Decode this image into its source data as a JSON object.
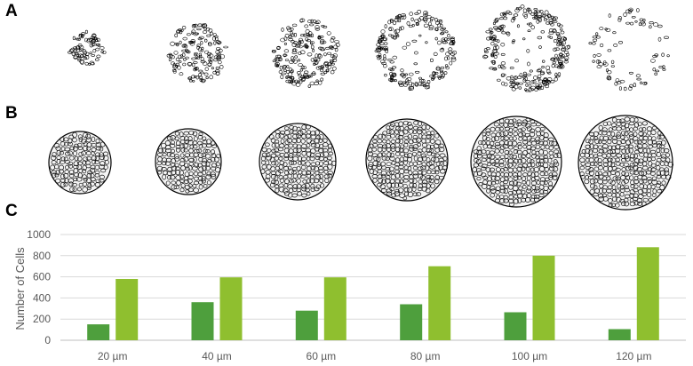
{
  "figure": {
    "panels": [
      {
        "id": "A",
        "label": "A"
      },
      {
        "id": "B",
        "label": "B"
      },
      {
        "id": "C",
        "label": "C"
      }
    ]
  },
  "row_a": {
    "description_color": "#000000",
    "disks": [
      {
        "fill_level": 0.18,
        "style": "sparse"
      },
      {
        "fill_level": 0.35,
        "style": "sparse"
      },
      {
        "fill_level": 0.45,
        "style": "sparse"
      },
      {
        "fill_level": 0.45,
        "style": "ring"
      },
      {
        "fill_level": 0.45,
        "style": "ring"
      },
      {
        "fill_level": 0.25,
        "style": "ring"
      }
    ]
  },
  "row_b": {
    "disks": [
      {
        "style": "dense"
      },
      {
        "style": "dense"
      },
      {
        "style": "dense"
      },
      {
        "style": "dense"
      },
      {
        "style": "dense"
      },
      {
        "style": "dense"
      }
    ]
  },
  "chart_data": {
    "type": "bar",
    "title": "",
    "xlabel": "",
    "ylabel": "Number of Cells",
    "ylim": [
      0,
      1000
    ],
    "yticks": [
      0,
      200,
      400,
      600,
      800,
      1000
    ],
    "grid": true,
    "categories": [
      "20 µm",
      "40 µm",
      "60 µm",
      "80 µm",
      "100 µm",
      "120 µm"
    ],
    "series": [
      {
        "values": [
          150,
          360,
          280,
          340,
          265,
          105
        ],
        "color": "#4e9f3d"
      },
      {
        "values": [
          580,
          595,
          595,
          700,
          800,
          880
        ],
        "color": "#8fbf2f"
      }
    ]
  }
}
